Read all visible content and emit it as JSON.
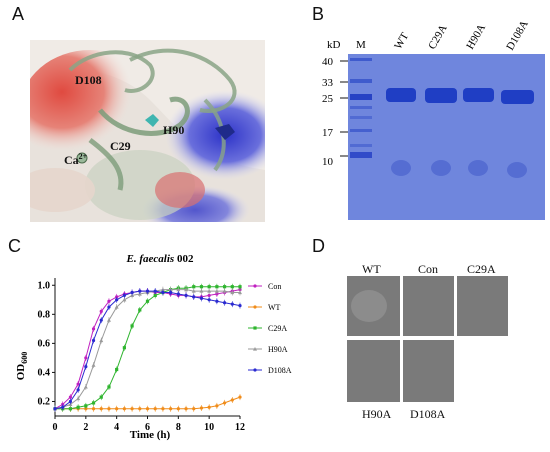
{
  "panel_a": {
    "letter": "A",
    "labels": {
      "d108": "D108",
      "c29": "C29",
      "h90": "H90",
      "ca": "Ca",
      "ca_sup": "2+"
    }
  },
  "panel_b": {
    "letter": "B",
    "kd_label": "kD",
    "lane_labels": [
      "M",
      "WT",
      "C29A",
      "H90A",
      "D108A"
    ],
    "markers": [
      "40",
      "33",
      "25",
      "17",
      "10"
    ],
    "colors": {
      "gel": "#6f86dd",
      "band": "#1f3ec4"
    }
  },
  "panel_c": {
    "letter": "C",
    "title_italic": "E. faecalis",
    "title_rest": " 002",
    "ylabel_main": "OD",
    "ylabel_sub": "600",
    "xlabel": "Time (h)",
    "xticks": [
      "0",
      "2",
      "4",
      "6",
      "8",
      "10",
      "12"
    ],
    "yticks": [
      "0.2",
      "0.4",
      "0.6",
      "0.8",
      "1.0"
    ]
  },
  "panel_d": {
    "letter": "D",
    "top_labels": [
      "WT",
      "Con",
      "C29A"
    ],
    "bottom_labels": [
      "H90A",
      "D108A"
    ]
  },
  "chart_data": {
    "type": "line",
    "title": "E. faecalis 002",
    "xlabel": "Time (h)",
    "ylabel": "OD600",
    "xlim": [
      0,
      12
    ],
    "ylim": [
      0.1,
      1.05
    ],
    "legend_position": "right",
    "x": [
      0,
      0.5,
      1,
      1.5,
      2,
      2.5,
      3,
      3.5,
      4,
      4.5,
      5,
      5.5,
      6,
      6.5,
      7,
      7.5,
      8,
      8.5,
      9,
      9.5,
      10,
      10.5,
      11,
      11.5,
      12
    ],
    "series": [
      {
        "name": "Con",
        "color": "#c020c0",
        "marker": "circle",
        "values": [
          0.15,
          0.18,
          0.23,
          0.32,
          0.5,
          0.7,
          0.82,
          0.89,
          0.92,
          0.94,
          0.95,
          0.96,
          0.96,
          0.95,
          0.95,
          0.94,
          0.93,
          0.93,
          0.92,
          0.92,
          0.93,
          0.94,
          0.95,
          0.96,
          0.97
        ]
      },
      {
        "name": "WT",
        "color": "#f08c1a",
        "marker": "circle",
        "values": [
          0.15,
          0.15,
          0.15,
          0.15,
          0.15,
          0.15,
          0.15,
          0.15,
          0.15,
          0.15,
          0.15,
          0.15,
          0.15,
          0.15,
          0.15,
          0.15,
          0.15,
          0.15,
          0.15,
          0.155,
          0.16,
          0.17,
          0.19,
          0.21,
          0.23
        ]
      },
      {
        "name": "C29A",
        "color": "#2fb52f",
        "marker": "square",
        "values": [
          0.15,
          0.15,
          0.15,
          0.16,
          0.17,
          0.19,
          0.23,
          0.3,
          0.42,
          0.57,
          0.72,
          0.83,
          0.89,
          0.93,
          0.95,
          0.97,
          0.98,
          0.98,
          0.99,
          0.99,
          0.99,
          0.99,
          0.99,
          0.99,
          0.99
        ]
      },
      {
        "name": "H90A",
        "color": "#9a9a9a",
        "marker": "triangle",
        "values": [
          0.15,
          0.16,
          0.18,
          0.22,
          0.3,
          0.45,
          0.62,
          0.76,
          0.85,
          0.9,
          0.93,
          0.94,
          0.95,
          0.96,
          0.97,
          0.97,
          0.97,
          0.97,
          0.96,
          0.96,
          0.96,
          0.96,
          0.96,
          0.95,
          0.95
        ]
      },
      {
        "name": "D108A",
        "color": "#2a2ad0",
        "marker": "circle",
        "values": [
          0.15,
          0.16,
          0.2,
          0.28,
          0.44,
          0.62,
          0.76,
          0.85,
          0.9,
          0.93,
          0.95,
          0.96,
          0.96,
          0.96,
          0.95,
          0.95,
          0.94,
          0.93,
          0.92,
          0.91,
          0.9,
          0.89,
          0.88,
          0.87,
          0.86
        ]
      }
    ]
  }
}
